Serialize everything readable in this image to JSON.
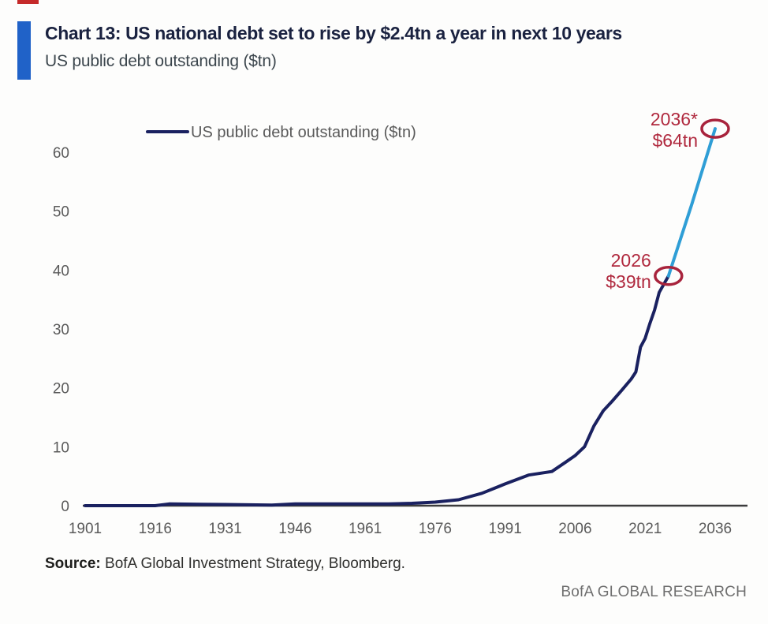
{
  "page": {
    "background": "#fdfdfc"
  },
  "header": {
    "crop_mark_color": "#c52a2a",
    "accent_bar_color": "#2062c8",
    "title": "Chart 13: US national debt set to rise by $2.4tn a year in next 10 years",
    "subtitle": "US public debt outstanding ($tn)"
  },
  "footer": {
    "source_label": "Source:",
    "source_rest": " BofA Global Investment Strategy, Bloomberg.",
    "brand": "BofA GLOBAL RESEARCH"
  },
  "chart_data": {
    "type": "line",
    "title": "US public debt outstanding ($tn)",
    "xlabel": "",
    "ylabel": "",
    "legend": {
      "label": "US public debt outstanding ($tn)",
      "position": "top-left"
    },
    "grid": false,
    "x_ticks": [
      1901,
      1916,
      1931,
      1946,
      1961,
      1976,
      1991,
      2006,
      2021,
      2036
    ],
    "y_ticks": [
      0,
      10,
      20,
      30,
      40,
      50,
      60
    ],
    "xlim": [
      1901,
      2043
    ],
    "ylim": [
      0,
      67
    ],
    "colors": {
      "historical": "#1a2160",
      "projection": "#2f9ed6",
      "annotation": "#b0293e",
      "circle": "#a8233c",
      "axis": "#3c3c3c",
      "tick_text": "#5a5a5a",
      "legend_text": "#5a5a5a"
    },
    "series": [
      {
        "name": "US public debt outstanding ($tn) - historical",
        "color": "#1a2160",
        "points": [
          [
            1901,
            0.0
          ],
          [
            1916,
            0.0
          ],
          [
            1919,
            0.3
          ],
          [
            1931,
            0.2
          ],
          [
            1941,
            0.1
          ],
          [
            1946,
            0.3
          ],
          [
            1951,
            0.3
          ],
          [
            1961,
            0.3
          ],
          [
            1966,
            0.3
          ],
          [
            1971,
            0.4
          ],
          [
            1976,
            0.6
          ],
          [
            1981,
            1.0
          ],
          [
            1986,
            2.1
          ],
          [
            1991,
            3.7
          ],
          [
            1996,
            5.2
          ],
          [
            2001,
            5.8
          ],
          [
            2004,
            7.4
          ],
          [
            2006,
            8.5
          ],
          [
            2008,
            10.0
          ],
          [
            2010,
            13.5
          ],
          [
            2012,
            16.1
          ],
          [
            2014,
            17.8
          ],
          [
            2016,
            19.6
          ],
          [
            2018,
            21.5
          ],
          [
            2019,
            22.7
          ],
          [
            2020,
            26.9
          ],
          [
            2021,
            28.4
          ],
          [
            2022,
            30.9
          ],
          [
            2023,
            33.2
          ],
          [
            2024,
            36.2
          ],
          [
            2026,
            39.0
          ]
        ]
      },
      {
        "name": "projection 2026-2036",
        "color": "#2f9ed6",
        "points": [
          [
            2026,
            39.0
          ],
          [
            2031,
            51.2
          ],
          [
            2036,
            64.0
          ]
        ]
      }
    ],
    "annotations": [
      {
        "label_lines": [
          "2026",
          "$39tn"
        ],
        "year": 2026,
        "value": 39,
        "circled": true,
        "text_dy": 0
      },
      {
        "label_lines": [
          "2036*",
          "$64tn"
        ],
        "year": 2036,
        "value": 64,
        "circled": true,
        "text_dy": 8
      }
    ]
  }
}
